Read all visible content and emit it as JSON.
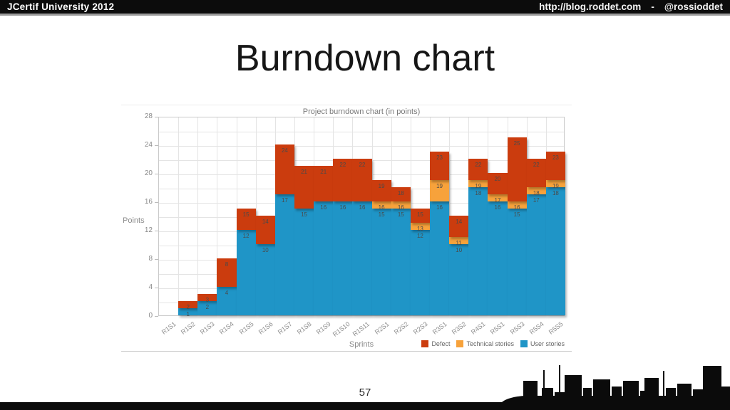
{
  "header": {
    "left_title": "JCertif University 2012",
    "right_url": "http://blog.roddet.com",
    "right_sep": "-",
    "right_handle": "@rossioddet"
  },
  "slide": {
    "title": "Burndown chart",
    "page_number": "57"
  },
  "chart_data": {
    "type": "bar",
    "stacked": true,
    "title": "Project burndown chart (in points)",
    "xlabel": "Sprints",
    "ylabel": "Points",
    "ylim": [
      0,
      28
    ],
    "ytick_step": 4,
    "grid_step": 2,
    "grid": true,
    "legend_position": "bottom-right",
    "point_labels": "cumulative",
    "categories": [
      "R1S1",
      "R1S2",
      "R1S3",
      "R1S4",
      "R1S5",
      "R1S6",
      "R1S7",
      "R1S8",
      "R1S9",
      "R1S10",
      "R1S11",
      "R2S1",
      "R2S2",
      "R2S3",
      "R3S1",
      "R3S2",
      "R4S1",
      "R5S1",
      "R5S3",
      "R5S4",
      "R5S5"
    ],
    "series": [
      {
        "name": "Defect",
        "color": "#cb3c0e",
        "values": [
          0,
          1,
          1,
          4,
          3,
          4,
          7,
          6,
          5,
          6,
          6,
          3,
          2,
          2,
          4,
          3,
          3,
          3,
          9,
          4,
          4
        ]
      },
      {
        "name": "Technical stories",
        "color": "#f7a23b",
        "values": [
          0,
          0,
          0,
          0,
          0,
          0,
          0,
          0,
          0,
          0,
          0,
          1,
          1,
          1,
          3,
          1,
          1,
          1,
          1,
          1,
          1
        ]
      },
      {
        "name": "User stories",
        "color": "#1f95c7",
        "values": [
          0,
          1,
          2,
          4,
          12,
          10,
          17,
          15,
          16,
          16,
          16,
          15,
          15,
          12,
          16,
          10,
          18,
          16,
          15,
          17,
          18
        ]
      }
    ]
  }
}
